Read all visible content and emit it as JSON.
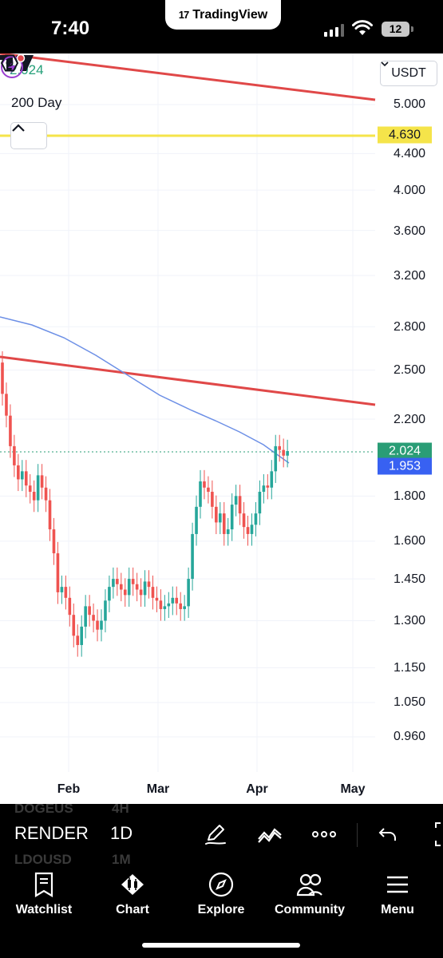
{
  "status_bar": {
    "time": "7:40",
    "center_app": "TradingView",
    "battery": "12"
  },
  "chart": {
    "legend_price": "2.024",
    "legend_ma_label": "200 Day",
    "currency": "USDT",
    "price_ticks": [
      "5.000",
      "4.400",
      "4.000",
      "3.600",
      "3.200",
      "2.800",
      "2.500",
      "2.200",
      "1.800",
      "1.600",
      "1.450",
      "1.300",
      "1.150",
      "1.050",
      "0.960"
    ],
    "price_tags": {
      "hline": "4.630",
      "last": "2.024",
      "ma": "1.953"
    },
    "time_ticks": [
      "Feb",
      "Mar",
      "Apr",
      "May"
    ],
    "colors": {
      "up": "#26a69a",
      "down": "#ef5350",
      "trendline": "#e04848",
      "hline": "#f5e44a",
      "ma": "#6c8fe6",
      "last_tag": "#2a9d76",
      "ma_tag": "#3861f2"
    }
  },
  "chart_data": {
    "type": "candlestick",
    "symbol": "RENDER",
    "interval": "1D",
    "x_axis": [
      "Feb",
      "Mar",
      "Apr",
      "May"
    ],
    "y_scale": "log",
    "ylim": [
      0.9,
      5.6
    ],
    "price_scale_ticks": [
      5.0,
      4.4,
      4.0,
      3.6,
      3.2,
      2.8,
      2.5,
      2.2,
      1.8,
      1.6,
      1.45,
      1.3,
      1.15,
      1.05,
      0.96
    ],
    "last_price": 2.024,
    "moving_average": {
      "name": "200 Day",
      "current": 1.953
    },
    "horizontal_line": 4.63,
    "closes": [
      2.35,
      2.22,
      2.05,
      1.95,
      1.88,
      1.92,
      1.85,
      1.82,
      1.78,
      1.9,
      1.84,
      1.78,
      1.65,
      1.55,
      1.4,
      1.42,
      1.38,
      1.32,
      1.25,
      1.22,
      1.28,
      1.35,
      1.32,
      1.3,
      1.27,
      1.3,
      1.37,
      1.42,
      1.45,
      1.43,
      1.41,
      1.39,
      1.45,
      1.43,
      1.41,
      1.39,
      1.44,
      1.42,
      1.38,
      1.37,
      1.34,
      1.35,
      1.36,
      1.38,
      1.36,
      1.34,
      1.35,
      1.45,
      1.63,
      1.75,
      1.87,
      1.84,
      1.82,
      1.75,
      1.68,
      1.72,
      1.63,
      1.65,
      1.76,
      1.8,
      1.72,
      1.66,
      1.63,
      1.67,
      1.72,
      1.82,
      1.85,
      1.84,
      1.92,
      2.05,
      2.03,
      2.0,
      2.024
    ],
    "opens": [
      2.55,
      2.35,
      2.22,
      2.05,
      1.95,
      1.88,
      1.92,
      1.85,
      1.82,
      1.78,
      1.9,
      1.84,
      1.78,
      1.65,
      1.55,
      1.4,
      1.42,
      1.38,
      1.32,
      1.25,
      1.22,
      1.28,
      1.35,
      1.32,
      1.3,
      1.27,
      1.3,
      1.37,
      1.42,
      1.45,
      1.43,
      1.41,
      1.39,
      1.45,
      1.43,
      1.41,
      1.39,
      1.44,
      1.42,
      1.38,
      1.37,
      1.34,
      1.35,
      1.36,
      1.38,
      1.36,
      1.34,
      1.35,
      1.45,
      1.63,
      1.75,
      1.87,
      1.84,
      1.82,
      1.75,
      1.68,
      1.72,
      1.63,
      1.65,
      1.76,
      1.8,
      1.72,
      1.66,
      1.63,
      1.67,
      1.72,
      1.82,
      1.85,
      1.84,
      1.92,
      2.05,
      2.03,
      2.0
    ]
  },
  "toolbar": {
    "symbol": "RENDER",
    "interval": "1D",
    "ghost_prev_symbol": "DOGEUS",
    "ghost_next_symbol": "LDOUSD",
    "ghost_prev_interval": "4H",
    "ghost_next_interval": "1M"
  },
  "tabs": [
    {
      "label": "Watchlist",
      "icon": "watchlist-icon"
    },
    {
      "label": "Chart",
      "icon": "chart-icon"
    },
    {
      "label": "Explore",
      "icon": "compass-icon"
    },
    {
      "label": "Community",
      "icon": "community-icon"
    },
    {
      "label": "Menu",
      "icon": "menu-icon"
    }
  ]
}
